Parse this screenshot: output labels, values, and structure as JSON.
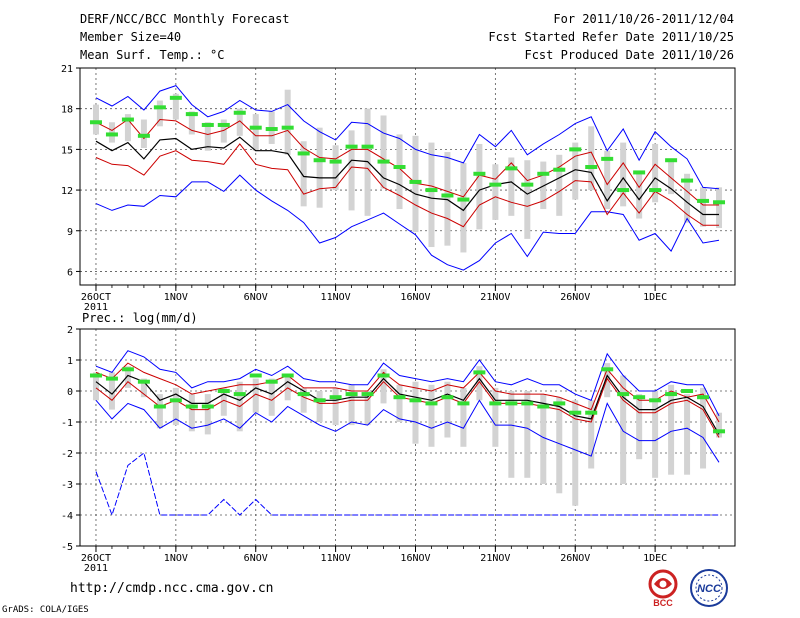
{
  "header": {
    "left_lines": [
      "DERF/NCC/BCC Monthly Forecast",
      "Member Size=40",
      "Mean Surf. Temp.: °C"
    ],
    "right_lines": [
      "For 2011/10/26-2011/12/04",
      "Fcst Started Refer Date 2011/10/25",
      "Fcst Produced Date 2011/10/26"
    ]
  },
  "footer": {
    "url": "http://cmdp.ncc.cma.gov.cn",
    "credit": "GrADS: COLA/IGES",
    "logos": [
      {
        "name": "bcc-logo",
        "text": "BCC",
        "color": "#cc2222"
      },
      {
        "name": "ncc-logo",
        "text": "NCC",
        "color": "#1a3a9a"
      }
    ]
  },
  "colors": {
    "upper_envelope": "#0000ff",
    "lower_envelope": "#0000ff",
    "spread_lines": "#cc0000",
    "mean_line": "#000000",
    "box": "#d3d3d3",
    "median_marker": "#33dd33"
  },
  "chart_data": [
    {
      "type": "line",
      "title": "Mean Surf. Temp.: °C",
      "ylabel": "°C",
      "ylim": [
        5,
        21
      ],
      "yticks": [
        6,
        9,
        12,
        15,
        18,
        21
      ],
      "grid": true,
      "x_tick_labels": [
        "26OCT",
        "1NOV",
        "6NOV",
        "11NOV",
        "16NOV",
        "21NOV",
        "26NOV",
        "1DEC"
      ],
      "x_tick_days": [
        1,
        6,
        11,
        16,
        21,
        26,
        31,
        36
      ],
      "x_sublabel": "2011",
      "days": [
        1,
        2,
        3,
        4,
        5,
        6,
        7,
        8,
        9,
        10,
        11,
        12,
        13,
        14,
        15,
        16,
        17,
        18,
        19,
        20,
        21,
        22,
        23,
        24,
        25,
        26,
        27,
        28,
        29,
        30,
        31,
        32,
        33,
        34,
        35,
        36,
        37,
        38,
        39,
        40
      ],
      "series": [
        {
          "name": "max",
          "values": [
            18.8,
            18.2,
            18.9,
            17.9,
            19.3,
            19.7,
            18.3,
            17.4,
            17.8,
            18.6,
            17.9,
            17.8,
            18.3,
            17.1,
            16.3,
            15.7,
            17.0,
            16.9,
            16.2,
            15.8,
            15.0,
            14.6,
            14.4,
            14.0,
            16.1,
            15.2,
            16.4,
            14.6,
            15.4,
            16.1,
            16.9,
            17.4,
            14.9,
            16.5,
            14.2,
            16.3,
            15.2,
            14.3,
            12.2,
            12.1
          ]
        },
        {
          "name": "p90",
          "values": [
            17.0,
            16.4,
            17.2,
            15.8,
            17.2,
            17.1,
            16.4,
            16.1,
            16.4,
            17.1,
            16.0,
            16.0,
            16.4,
            15.1,
            14.4,
            14.3,
            15.0,
            15.0,
            14.3,
            13.6,
            12.5,
            12.3,
            11.9,
            11.5,
            13.1,
            12.8,
            14.0,
            12.7,
            13.1,
            13.7,
            14.5,
            14.8,
            12.4,
            14.0,
            12.2,
            13.9,
            12.9,
            11.9,
            10.9,
            10.9
          ]
        },
        {
          "name": "mean",
          "values": [
            15.6,
            14.9,
            15.5,
            14.3,
            15.7,
            15.8,
            15.0,
            15.2,
            15.1,
            15.9,
            14.9,
            14.9,
            14.7,
            13.0,
            12.9,
            12.9,
            14.2,
            14.1,
            12.9,
            12.4,
            11.7,
            11.4,
            11.3,
            10.5,
            12.0,
            12.4,
            12.6,
            11.7,
            12.3,
            12.9,
            13.5,
            13.3,
            11.2,
            12.9,
            11.3,
            12.9,
            12.1,
            11.1,
            10.2,
            10.2
          ]
        },
        {
          "name": "p10",
          "values": [
            14.4,
            13.9,
            13.8,
            13.1,
            14.5,
            14.9,
            14.2,
            14.1,
            13.9,
            15.4,
            13.9,
            13.6,
            13.5,
            11.7,
            12.1,
            12.2,
            13.7,
            13.6,
            12.2,
            11.6,
            10.9,
            10.3,
            9.9,
            9.3,
            10.9,
            11.5,
            11.1,
            10.8,
            11.2,
            11.9,
            12.7,
            12.6,
            10.2,
            11.8,
            10.3,
            11.9,
            11.2,
            10.2,
            9.4,
            9.4
          ]
        },
        {
          "name": "min",
          "values": [
            11.0,
            10.5,
            10.9,
            10.8,
            11.6,
            11.5,
            12.6,
            12.6,
            11.9,
            13.1,
            12.0,
            11.2,
            10.5,
            9.6,
            8.1,
            8.5,
            9.3,
            9.8,
            10.3,
            9.5,
            8.7,
            7.2,
            6.5,
            6.1,
            6.8,
            8.1,
            8.8,
            7.1,
            8.9,
            8.8,
            8.8,
            10.4,
            10.4,
            10.2,
            8.3,
            8.8,
            7.5,
            9.9,
            8.1,
            8.3
          ]
        },
        {
          "name": "median_marker",
          "values": [
            17.0,
            16.1,
            17.2,
            16.0,
            18.1,
            18.8,
            17.6,
            16.8,
            16.8,
            17.7,
            16.6,
            16.5,
            16.6,
            14.7,
            14.2,
            14.1,
            15.2,
            15.2,
            14.1,
            13.7,
            12.6,
            12.0,
            11.6,
            11.3,
            13.2,
            12.4,
            13.6,
            12.4,
            13.2,
            13.5,
            15.0,
            13.7,
            14.3,
            12.0,
            13.3,
            12.0,
            14.2,
            12.7,
            11.2,
            11.1
          ]
        },
        {
          "name": "box_high",
          "values": [
            18.3,
            17.0,
            17.6,
            17.2,
            18.6,
            19.1,
            17.8,
            17.0,
            17.2,
            18.0,
            17.6,
            17.8,
            19.4,
            15.6,
            16.6,
            15.3,
            16.4,
            18.0,
            17.5,
            16.1,
            16.0,
            15.5,
            14.8,
            14.0,
            15.4,
            13.9,
            14.4,
            14.2,
            14.1,
            14.6,
            15.5,
            16.7,
            14.9,
            15.5,
            13.2,
            15.4,
            14.2,
            13.2,
            12.2,
            12.2
          ]
        },
        {
          "name": "box_low",
          "values": [
            16.1,
            15.5,
            15.6,
            15.1,
            16.7,
            17.2,
            16.1,
            14.9,
            15.5,
            16.0,
            14.9,
            15.4,
            14.6,
            10.8,
            10.7,
            12.0,
            10.5,
            10.1,
            12.1,
            10.6,
            8.9,
            7.8,
            7.9,
            7.4,
            9.1,
            9.8,
            10.1,
            8.4,
            10.6,
            10.1,
            11.3,
            12.0,
            10.6,
            10.8,
            9.9,
            11.1,
            11.7,
            9.6,
            9.3,
            9.2
          ]
        }
      ]
    },
    {
      "type": "line",
      "title": "Prec.: log(mm/d)",
      "ylabel": "log(mm/d)",
      "ylim": [
        -5,
        2
      ],
      "yticks": [
        -5,
        -4,
        -3,
        -2,
        -1,
        0,
        1,
        2
      ],
      "grid": true,
      "x_tick_labels": [
        "26OCT",
        "1NOV",
        "6NOV",
        "11NOV",
        "16NOV",
        "21NOV",
        "26NOV",
        "1DEC"
      ],
      "x_tick_days": [
        1,
        6,
        11,
        16,
        21,
        26,
        31,
        36
      ],
      "x_sublabel": "2011",
      "days": [
        1,
        2,
        3,
        4,
        5,
        6,
        7,
        8,
        9,
        10,
        11,
        12,
        13,
        14,
        15,
        16,
        17,
        18,
        19,
        20,
        21,
        22,
        23,
        24,
        25,
        26,
        27,
        28,
        29,
        30,
        31,
        32,
        33,
        34,
        35,
        36,
        37,
        38,
        39,
        40
      ],
      "series": [
        {
          "name": "max",
          "values": [
            0.8,
            0.6,
            1.3,
            1.1,
            0.7,
            0.6,
            0.1,
            0.3,
            0.3,
            0.4,
            0.7,
            0.5,
            0.8,
            0.4,
            0.3,
            0.3,
            0.2,
            0.2,
            0.9,
            0.5,
            0.4,
            0.3,
            0.4,
            0.3,
            1.0,
            0.3,
            0.2,
            0.4,
            0.2,
            0.2,
            -0.1,
            -0.3,
            1.2,
            0.5,
            0.0,
            0.0,
            0.3,
            0.2,
            0.2,
            -0.8
          ]
        },
        {
          "name": "p90",
          "values": [
            0.6,
            0.4,
            0.9,
            0.6,
            0.4,
            0.2,
            -0.1,
            0.0,
            0.1,
            0.2,
            0.2,
            0.3,
            0.5,
            0.1,
            0.1,
            0.1,
            0.0,
            0.0,
            0.6,
            0.2,
            0.1,
            0.0,
            0.2,
            0.1,
            0.6,
            0.0,
            -0.1,
            -0.1,
            -0.1,
            -0.2,
            -0.4,
            -0.6,
            0.7,
            0.1,
            -0.3,
            -0.3,
            0.0,
            -0.2,
            -0.1,
            -1.0
          ]
        },
        {
          "name": "mean",
          "values": [
            0.3,
            -0.1,
            0.5,
            0.3,
            -0.3,
            -0.1,
            -0.4,
            -0.4,
            -0.1,
            -0.3,
            0.1,
            -0.1,
            0.3,
            0.0,
            -0.3,
            -0.3,
            -0.2,
            -0.2,
            0.4,
            -0.1,
            -0.2,
            -0.3,
            -0.1,
            -0.3,
            0.4,
            -0.3,
            -0.3,
            -0.3,
            -0.4,
            -0.5,
            -0.8,
            -0.9,
            0.5,
            -0.2,
            -0.6,
            -0.6,
            -0.3,
            -0.2,
            -0.5,
            -1.4
          ]
        },
        {
          "name": "p10",
          "values": [
            0.1,
            -0.3,
            0.3,
            -0.1,
            -0.5,
            -0.3,
            -0.6,
            -0.6,
            -0.3,
            -0.5,
            -0.1,
            -0.3,
            0.1,
            -0.2,
            -0.4,
            -0.4,
            -0.3,
            -0.3,
            0.3,
            -0.2,
            -0.3,
            -0.4,
            -0.2,
            -0.4,
            0.3,
            -0.4,
            -0.4,
            -0.4,
            -0.5,
            -0.6,
            -0.9,
            -1.0,
            0.4,
            -0.3,
            -0.7,
            -0.7,
            -0.4,
            -0.3,
            -0.6,
            -1.5
          ]
        },
        {
          "name": "min",
          "values": [
            -0.3,
            -0.9,
            -0.4,
            -0.6,
            -1.2,
            -0.9,
            -1.2,
            -1.1,
            -0.9,
            -1.2,
            -0.7,
            -1.0,
            -0.5,
            -0.8,
            -1.1,
            -1.3,
            -1.0,
            -1.1,
            -0.6,
            -0.9,
            -1.0,
            -1.2,
            -1.0,
            -1.2,
            -0.3,
            -1.1,
            -1.1,
            -1.2,
            -1.5,
            -1.7,
            -1.9,
            -2.1,
            -0.4,
            -1.3,
            -1.6,
            -1.6,
            -1.3,
            -1.2,
            -1.5,
            -2.3
          ]
        },
        {
          "name": "min_extreme",
          "values": [
            -2.6,
            -4.0,
            -2.4,
            -2.0,
            -4.0,
            -4.0,
            -4.0,
            -4.0,
            -3.5,
            -4.0,
            -3.5,
            -4.0,
            -4.0,
            -4.0,
            -4.0,
            -4.0,
            -4.0,
            -4.0,
            -4.0,
            -4.0,
            -4.0,
            -4.0,
            -4.0,
            -4.0,
            -4.0,
            -4.0,
            -4.0,
            -4.0,
            -4.0,
            -4.0,
            -4.0,
            -4.0,
            -4.0,
            -4.0,
            -4.0,
            -4.0,
            -4.0,
            -4.0,
            -4.0,
            -4.0
          ]
        },
        {
          "name": "median_marker",
          "values": [
            0.5,
            0.4,
            0.7,
            0.3,
            -0.5,
            -0.3,
            -0.5,
            -0.5,
            0.0,
            -0.1,
            0.5,
            0.3,
            0.5,
            -0.1,
            -0.3,
            -0.2,
            -0.1,
            -0.1,
            0.5,
            -0.2,
            -0.3,
            -0.4,
            -0.2,
            -0.4,
            0.6,
            -0.4,
            -0.4,
            -0.4,
            -0.5,
            -0.4,
            -0.7,
            -0.7,
            0.7,
            -0.1,
            -0.2,
            -0.3,
            -0.1,
            0.0,
            -0.2,
            -1.3
          ]
        },
        {
          "name": "box_high",
          "values": [
            0.6,
            0.6,
            0.8,
            0.4,
            -0.1,
            0.1,
            -0.1,
            -0.1,
            0.1,
            0.3,
            0.4,
            0.4,
            0.5,
            0.1,
            0.0,
            0.1,
            0.2,
            0.0,
            0.7,
            0.2,
            0.3,
            0.2,
            0.3,
            0.1,
            0.8,
            0.1,
            0.0,
            0.0,
            -0.1,
            -0.2,
            -0.3,
            -0.3,
            0.9,
            0.5,
            -0.1,
            0.0,
            0.2,
            -0.1,
            0.1,
            -0.7
          ]
        },
        {
          "name": "box_low",
          "values": [
            -0.3,
            -0.6,
            0.1,
            -0.2,
            -1.2,
            -1.1,
            -1.3,
            -1.4,
            -0.8,
            -1.3,
            -0.7,
            -0.8,
            -0.3,
            -0.7,
            -1.0,
            -1.1,
            -1.1,
            -1.1,
            -0.4,
            -1.0,
            -1.7,
            -1.8,
            -1.5,
            -1.8,
            -0.3,
            -1.8,
            -2.8,
            -2.8,
            -3.0,
            -3.3,
            -3.7,
            -2.5,
            -0.2,
            -3.0,
            -2.2,
            -2.8,
            -2.7,
            -2.7,
            -2.5,
            -1.5
          ]
        }
      ]
    }
  ]
}
